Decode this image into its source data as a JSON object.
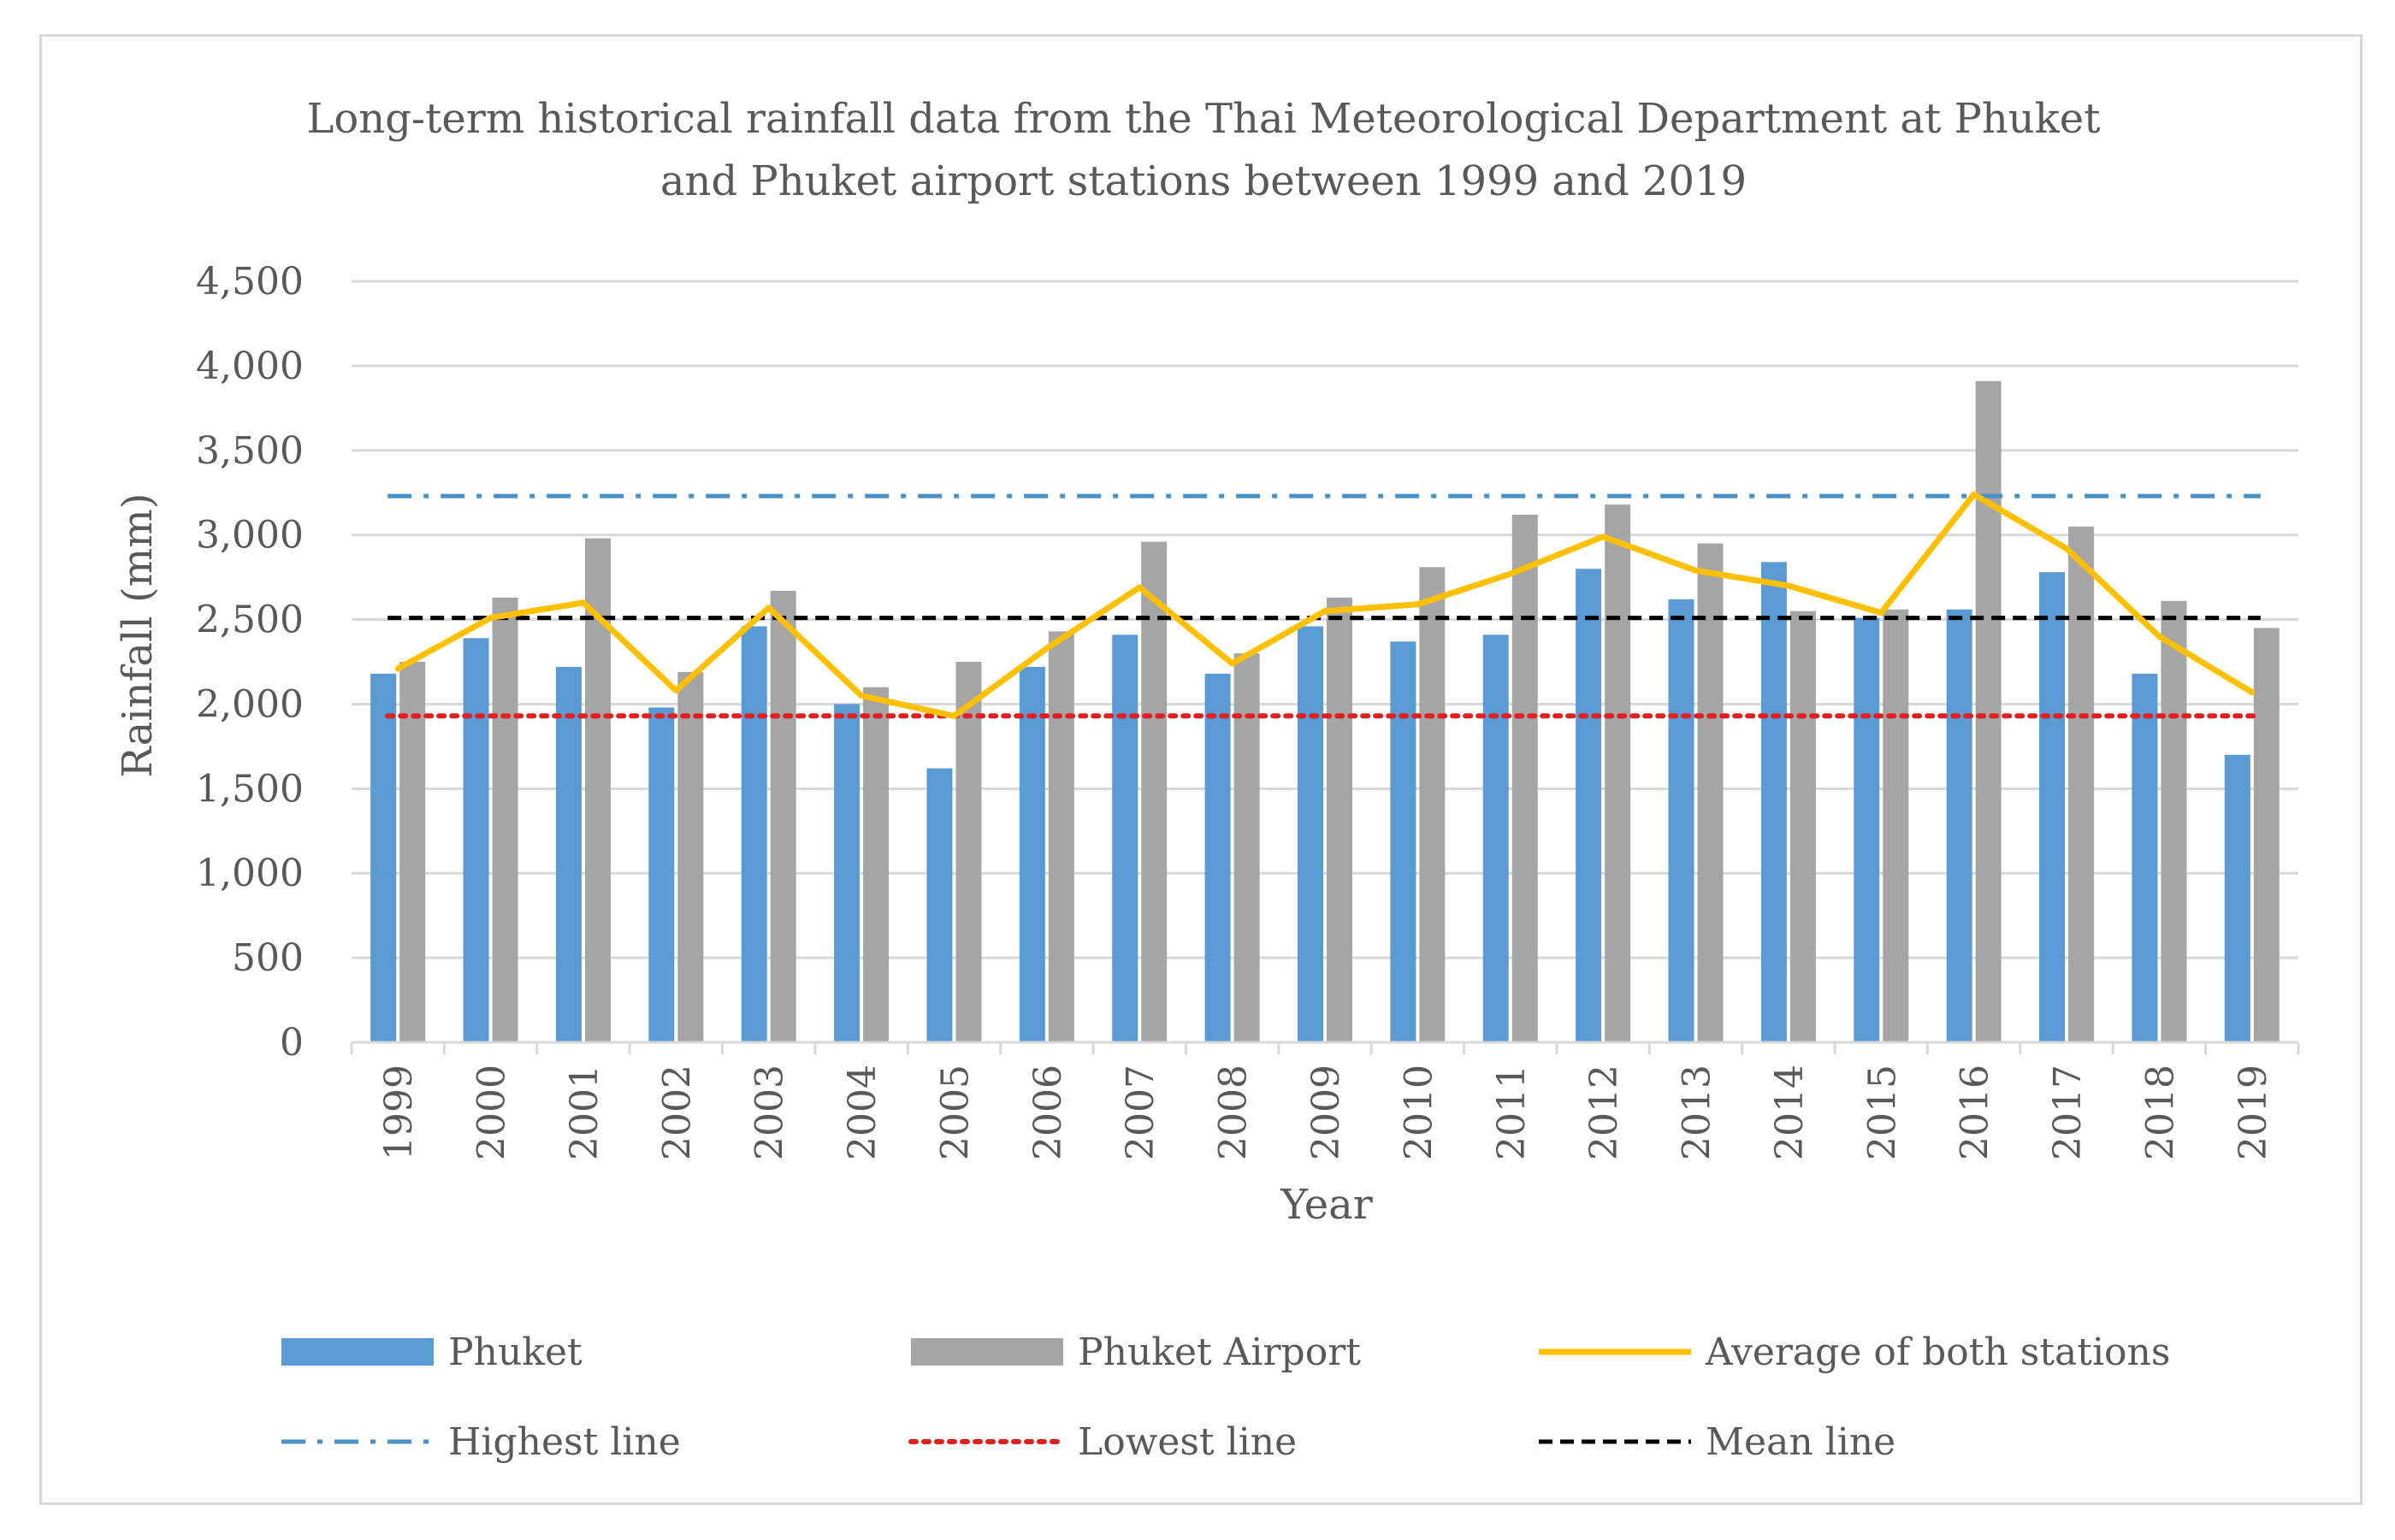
{
  "chart_data": {
    "type": "bar",
    "title_lines": [
      "Long-term historical rainfall data from the Thai Meteorological Department at Phuket",
      "and Phuket airport stations between 1999 and 2019"
    ],
    "xlabel": "Year",
    "ylabel": "Rainfall (mm)",
    "ylim": [
      0,
      4500
    ],
    "yticks": [
      0,
      500,
      1000,
      1500,
      2000,
      2500,
      3000,
      3500,
      4000,
      4500
    ],
    "ytick_labels": [
      "0",
      "500",
      "1,000",
      "1,500",
      "2,000",
      "2,500",
      "3,000",
      "3,500",
      "4,000",
      "4,500"
    ],
    "grid": true,
    "categories": [
      "1999",
      "2000",
      "2001",
      "2002",
      "2003",
      "2004",
      "2005",
      "2006",
      "2007",
      "2008",
      "2009",
      "2010",
      "2011",
      "2012",
      "2013",
      "2014",
      "2015",
      "2016",
      "2017",
      "2018",
      "2019"
    ],
    "series": [
      {
        "name": "Phuket",
        "kind": "bar",
        "color": "#5b9bd5",
        "values": [
          2180,
          2390,
          2220,
          1980,
          2460,
          2000,
          1620,
          2220,
          2410,
          2180,
          2460,
          2370,
          2410,
          2800,
          2620,
          2840,
          2510,
          2560,
          2780,
          2180,
          1700
        ]
      },
      {
        "name": "Phuket Airport",
        "kind": "bar",
        "color": "#a5a5a5",
        "values": [
          2250,
          2630,
          2980,
          2190,
          2670,
          2100,
          2250,
          2430,
          2960,
          2300,
          2630,
          2810,
          3120,
          3180,
          2950,
          2550,
          2560,
          3910,
          3050,
          2610,
          2450
        ]
      },
      {
        "name": "Average of both stations",
        "kind": "line",
        "color": "#ffc000",
        "values": [
          2210,
          2510,
          2600,
          2080,
          2570,
          2050,
          1930,
          2330,
          2690,
          2240,
          2550,
          2590,
          2770,
          2990,
          2790,
          2700,
          2540,
          3240,
          2920,
          2400,
          2070
        ]
      },
      {
        "name": "Highest line",
        "kind": "reference",
        "style": "dash-dot",
        "color": "#4a90c8",
        "value": 3230
      },
      {
        "name": "Lowest line",
        "kind": "reference",
        "style": "dotted",
        "color": "#e02020",
        "value": 1930
      },
      {
        "name": "Mean line",
        "kind": "reference",
        "style": "dashed",
        "color": "#000000",
        "value": 2510
      }
    ],
    "legend_position": "bottom"
  }
}
